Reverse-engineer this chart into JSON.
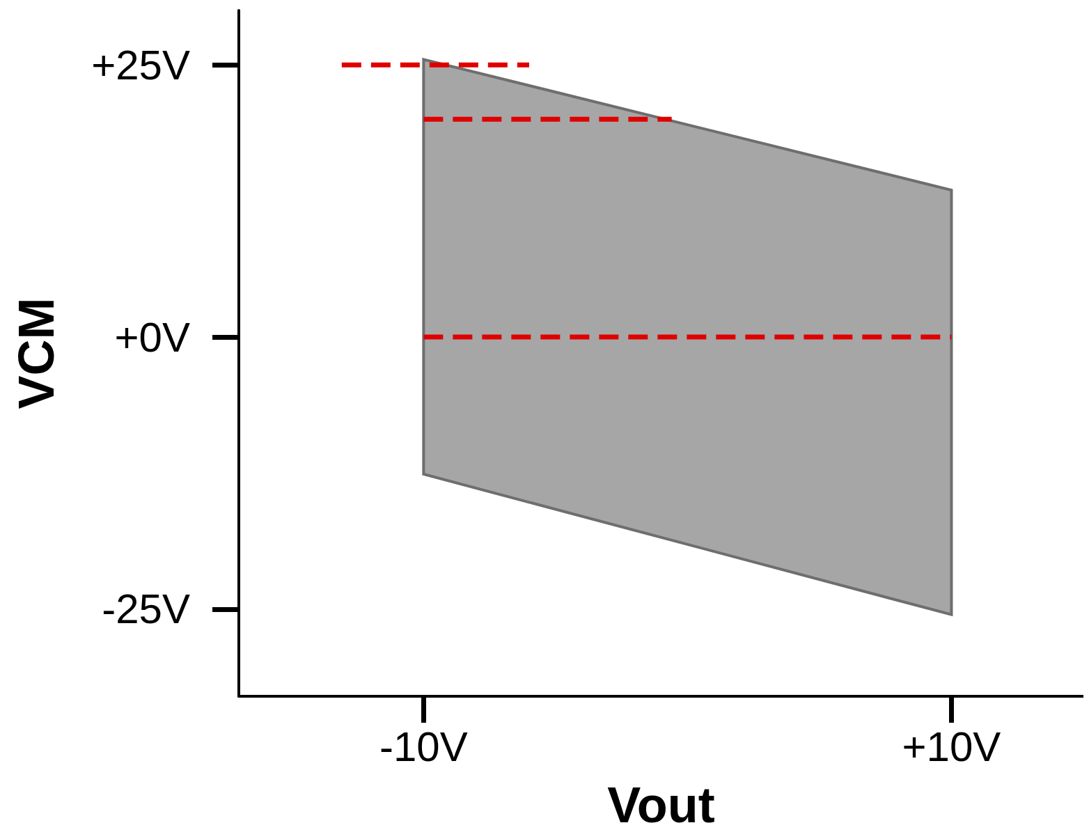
{
  "chart_data": {
    "type": "area",
    "xlabel": "Vout",
    "ylabel": "VCM",
    "xlim": [
      -17,
      15
    ],
    "ylim": [
      -33,
      30
    ],
    "xticks": [
      {
        "value": -10,
        "label": "-10V"
      },
      {
        "value": 10,
        "label": "+10V"
      }
    ],
    "yticks": [
      {
        "value": -25,
        "label": "-25V"
      },
      {
        "value": 0,
        "label": "+0V"
      },
      {
        "value": 25,
        "label": "+25V"
      }
    ],
    "grid": false,
    "marker": "none",
    "series": [
      {
        "color": "#a6a6a6",
        "x": [
          -10,
          10
        ],
        "values": [
          null,
          null
        ],
        "upper": [
          25.5,
          13.5
        ],
        "lower": [
          -12.6,
          -25.5
        ]
      },
      {
        "type": "line",
        "color": "#e00000",
        "line_style": "dashed",
        "x": [
          -13.1,
          -6
        ],
        "values": [
          25,
          25
        ]
      },
      {
        "type": "line",
        "color": "#e00000",
        "line_style": "dashed",
        "x": [
          -10,
          -0.6
        ],
        "values": [
          20,
          20
        ]
      },
      {
        "type": "line",
        "color": "#e00000",
        "line_style": "dashed",
        "x": [
          -10,
          10
        ],
        "values": [
          0,
          0
        ]
      }
    ]
  }
}
